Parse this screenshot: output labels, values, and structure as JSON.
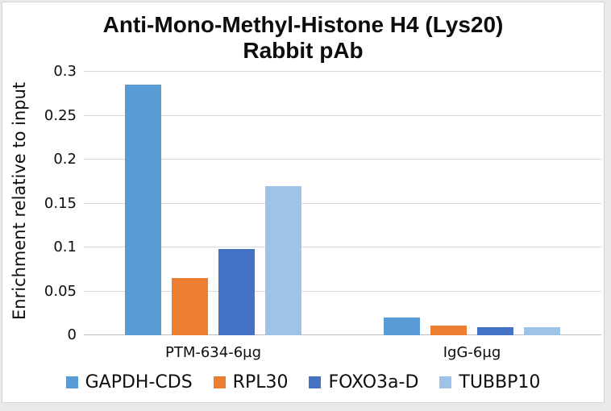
{
  "title": {
    "line1": "Anti-Mono-Methyl-Histone H4 (Lys20)",
    "line2": "Rabbit pAb"
  },
  "y_axis_title": "Enrichment relative to input",
  "colors": {
    "gridline": "#d9d9d9",
    "axis_line": "#bdbdbd",
    "text": "#0d0d0d",
    "frame_border": "#d6d6d6",
    "background": "#ffffff"
  },
  "chart_data": {
    "type": "bar",
    "title": "Anti-Mono-Methyl-Histone H4 (Lys20) Rabbit pAb",
    "xlabel": "",
    "ylabel": "Enrichment relative to input",
    "categories": [
      "PTM-634-6µg",
      "IgG-6µg"
    ],
    "series": [
      {
        "name": "GAPDH-CDS",
        "color": "#5B9BD5",
        "values": [
          0.285,
          0.02
        ]
      },
      {
        "name": "RPL30",
        "color": "#ED7D31",
        "values": [
          0.065,
          0.011
        ]
      },
      {
        "name": "FOXO3a-D",
        "color": "#4472C4",
        "values": [
          0.098,
          0.009
        ]
      },
      {
        "name": "TUBBP10",
        "color": "#9DC3E6",
        "values": [
          0.17,
          0.009
        ]
      }
    ],
    "ylim": [
      0,
      0.3
    ],
    "yticks": [
      0,
      0.05,
      0.1,
      0.15,
      0.2,
      0.25,
      0.3
    ],
    "ytick_labels": [
      "0",
      "0.05",
      "0.1",
      "0.15",
      "0.2",
      "0.25",
      "0.3"
    ],
    "grid": true,
    "legend_position": "bottom"
  }
}
